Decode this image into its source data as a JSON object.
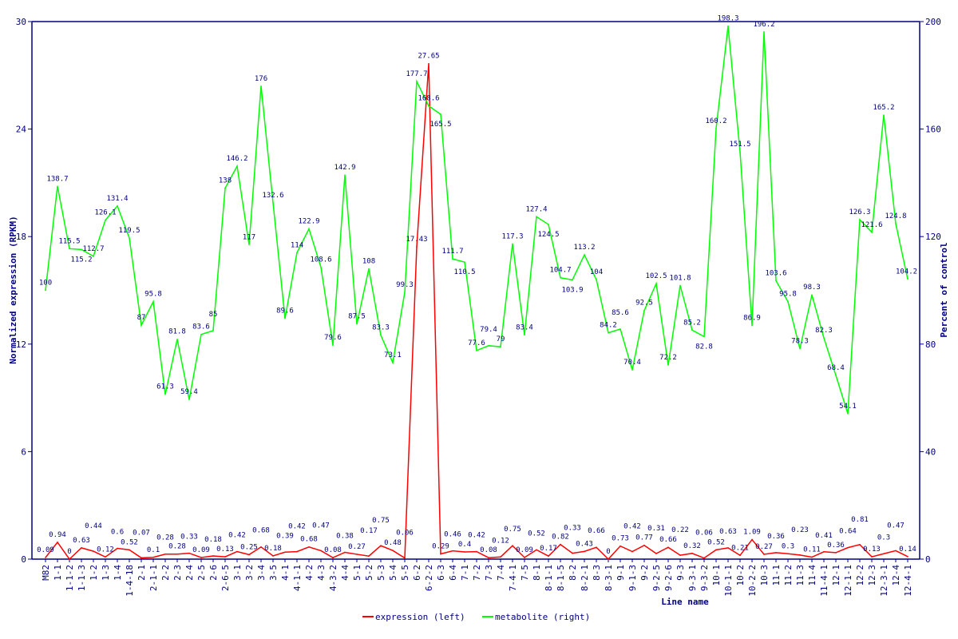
{
  "chart_data": {
    "type": "line",
    "xlabel": "Line name",
    "ylabel_left": "Normalized expression (RPKM)",
    "ylabel_right": "Percent of control",
    "ylim_left": [
      0,
      30
    ],
    "ylim_right": [
      0,
      200
    ],
    "yticks_left": [
      "0",
      "6",
      "12",
      "18",
      "24",
      "30"
    ],
    "yticks_right": [
      "0",
      "40",
      "80",
      "120",
      "160",
      "200"
    ],
    "legend_position": "bottom-center",
    "categories": [
      "M82",
      "1-1",
      "1-1-2",
      "1-1-3",
      "1-2",
      "1-3",
      "1-4",
      "1-4-18",
      "2-1",
      "2-1-1",
      "2-2",
      "2-3",
      "2-4",
      "2-5",
      "2-6",
      "2-6-5",
      "3-1",
      "3-2",
      "3-4",
      "3-5",
      "4-1",
      "4-1-1",
      "4-2",
      "4-3",
      "4-3-2",
      "4-4",
      "5-1",
      "5-2",
      "5-3",
      "5-4",
      "5-5",
      "6-2",
      "6-2-2",
      "6-3",
      "6-4",
      "7-1",
      "7-2",
      "7-3",
      "7-4",
      "7-4-1",
      "7-5",
      "8-1",
      "8-1-1",
      "8-1-5",
      "8-2",
      "8-2-1",
      "8-3",
      "8-3-1",
      "9-1",
      "9-1-3",
      "9-2",
      "9-2-5",
      "9-2-6",
      "9-3",
      "9-3-1",
      "9-3-2",
      "10-1",
      "10-1-1",
      "10-2",
      "10-2-2",
      "10-3",
      "11-1",
      "11-2",
      "11-3",
      "11-4",
      "11-4-1",
      "12-1",
      "12-1-1",
      "12-2",
      "12-3",
      "12-3-1",
      "12-4",
      "12-4-1"
    ],
    "series": [
      {
        "name": "expression (left)",
        "axis": "left",
        "color": "#ff0000",
        "values": [
          0.09,
          0.94,
          0,
          0.63,
          0.44,
          0.12,
          0.6,
          0.52,
          0.07,
          0.1,
          0.28,
          0.28,
          0.33,
          0.09,
          0.18,
          0.13,
          0.42,
          0.25,
          0.68,
          0.18,
          0.39,
          0.42,
          0.68,
          0.47,
          0.08,
          0.38,
          0.27,
          0.17,
          0.75,
          0.48,
          0.06,
          17.43,
          27.65,
          0.29,
          0.46,
          0.4,
          0.42,
          0.08,
          0.12,
          0.75,
          0.09,
          0.52,
          0.17,
          0.82,
          0.33,
          0.43,
          0.66,
          0,
          0.73,
          0.42,
          0.77,
          0.31,
          0.66,
          0.22,
          0.32,
          0.06,
          0.52,
          0.63,
          0.21,
          1.09,
          0.27,
          0.36,
          0.3,
          0.23,
          0.11,
          0.41,
          0.36,
          0.64,
          0.81,
          0.13,
          0.3,
          0.47,
          0.14
        ]
      },
      {
        "name": "metabolite (right)",
        "axis": "right",
        "color": "#00ff00",
        "values": [
          100,
          138.7,
          115.5,
          115.2,
          112.7,
          126.1,
          131.4,
          119.5,
          87,
          95.8,
          61.3,
          81.8,
          59.4,
          83.6,
          85,
          138,
          146.2,
          117,
          176,
          132.6,
          89.6,
          114,
          122.9,
          108.6,
          79.6,
          142.9,
          87.5,
          108,
          83.3,
          73.1,
          99.3,
          177.7,
          168.6,
          165.5,
          111.7,
          110.5,
          77.6,
          79.4,
          79,
          117.3,
          83.4,
          127.4,
          124.5,
          104.7,
          103.9,
          113.2,
          104,
          84.2,
          85.6,
          70.4,
          92.5,
          102.5,
          72.2,
          101.8,
          85.2,
          82.8,
          160.2,
          198.3,
          151.5,
          86.9,
          196.2,
          103.6,
          95.8,
          78.3,
          98.3,
          82.3,
          68.4,
          54.1,
          126.3,
          121.6,
          165.2,
          124.8,
          104.2
        ]
      }
    ],
    "axis_color": "#000080",
    "grid": false
  }
}
